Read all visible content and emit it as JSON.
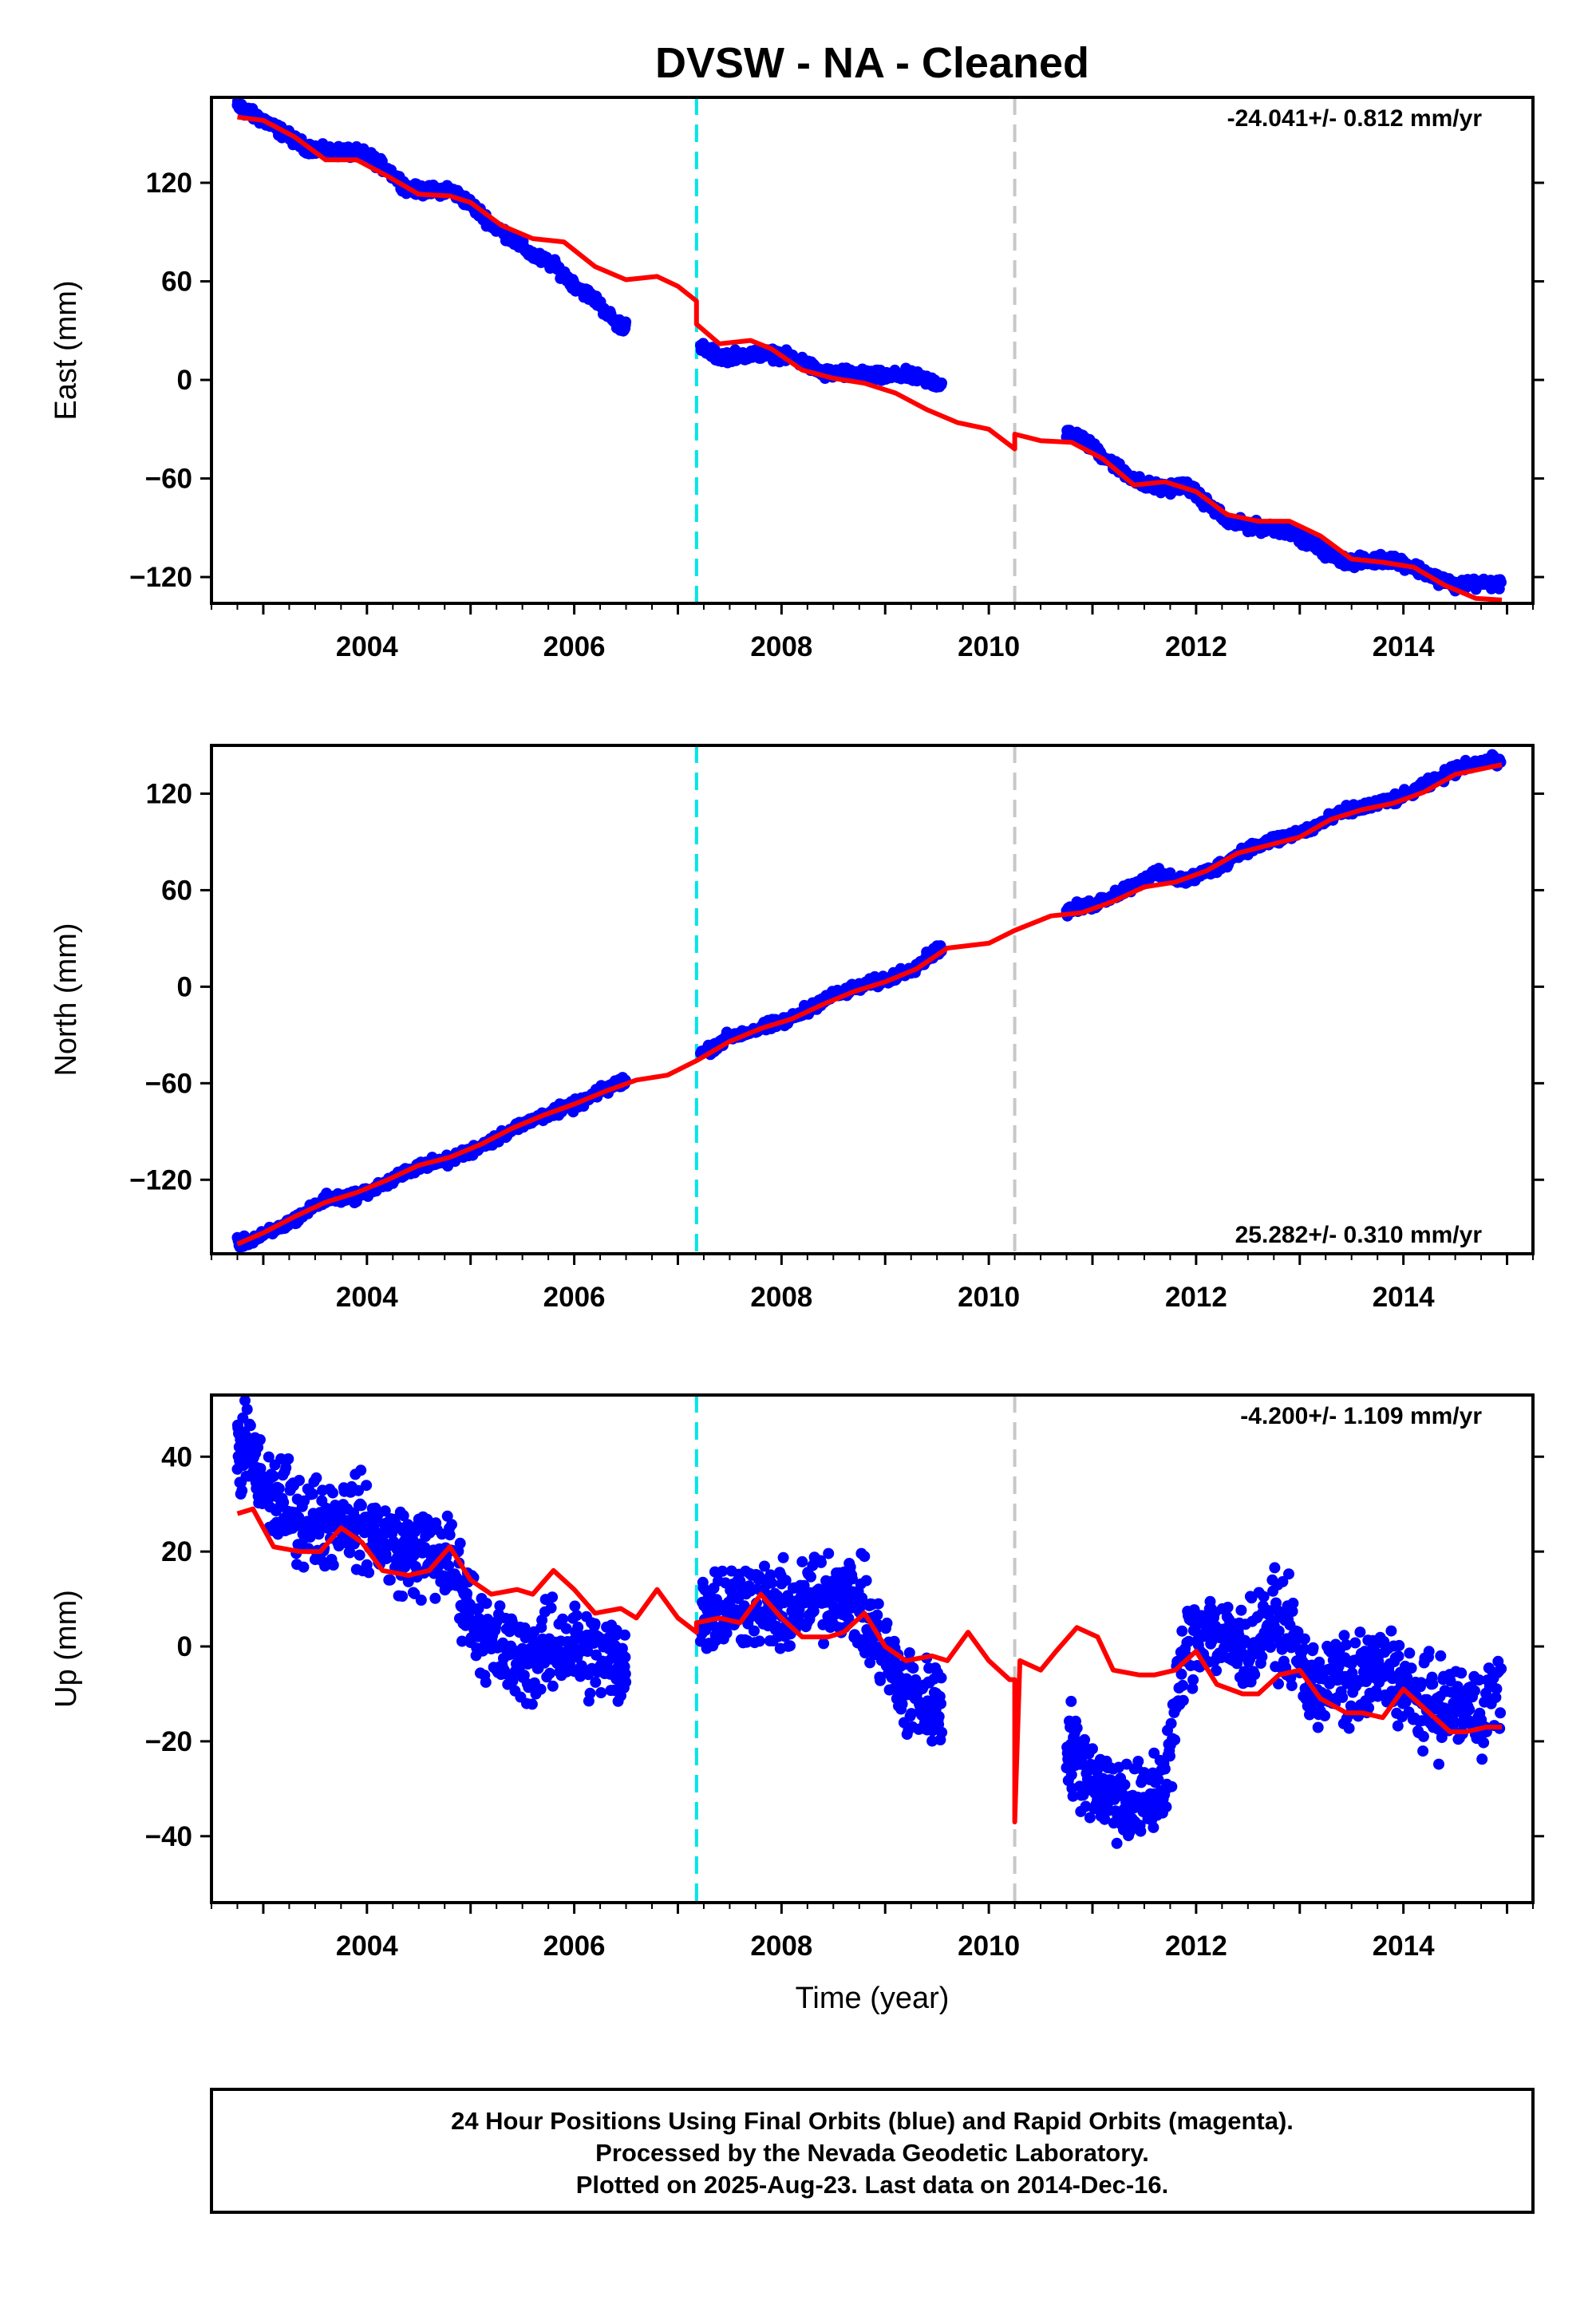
{
  "title": "DVSW  - NA - Cleaned",
  "xlabel": "Time (year)",
  "footer": {
    "line1": "24 Hour Positions Using Final Orbits (blue) and Rapid Orbits (magenta).",
    "line2": "Processed by the Nevada Geodetic Laboratory.",
    "line3": "Plotted on 2025-Aug-23. Last data on 2014-Dec-16."
  },
  "colors": {
    "data": "#0000ff",
    "model": "#ff0000",
    "offset_1": "#00e5e5",
    "offset_2": "#c8c8c8"
  },
  "chart_data": [
    {
      "type": "scatter",
      "ylabel": "East (mm)",
      "rate_label": "-24.041+/- 0.812 mm/yr",
      "rate_position": "top-right",
      "xlim": [
        2002.5,
        2015.25
      ],
      "ylim": [
        -136,
        172
      ],
      "yticks": [
        -120,
        -60,
        0,
        60,
        120
      ],
      "xticks": [
        2004,
        2006,
        2008,
        2010,
        2012,
        2014
      ],
      "offsets": [
        2007.18,
        2010.25
      ],
      "series": [
        {
          "kind": "points",
          "segments": [
            {
              "x": [
                2002.75,
                2002.85,
                2003.0,
                2003.2,
                2003.4,
                2003.6,
                2003.8,
                2004.0,
                2004.2,
                2004.4,
                2004.6,
                2004.8,
                2005.0,
                2005.2,
                2005.4,
                2005.6,
                2005.8,
                2006.0,
                2006.2,
                2006.4,
                2006.5
              ],
              "y": [
                167,
                163,
                158,
                150,
                142,
                139,
                139,
                137,
                128,
                116,
                115,
                116,
                107,
                95,
                86,
                76,
                70,
                58,
                49,
                35,
                32
              ]
            },
            {
              "x": [
                2007.22,
                2007.4,
                2007.6,
                2007.8,
                2008.0,
                2008.2,
                2008.4,
                2008.6,
                2008.8,
                2009.0,
                2009.2,
                2009.4,
                2009.55
              ],
              "y": [
                20,
                14,
                15,
                16,
                15,
                11,
                4,
                4,
                3,
                2,
                3,
                0,
                -3
              ]
            },
            {
              "x": [
                2010.75,
                2010.9,
                2011.1,
                2011.3,
                2011.5,
                2011.7,
                2011.9,
                2012.1,
                2012.3,
                2012.5,
                2012.7,
                2012.9,
                2013.1,
                2013.3,
                2013.5,
                2013.7,
                2013.9,
                2014.1,
                2014.3,
                2014.5,
                2014.7,
                2014.95
              ],
              "y": [
                -32,
                -36,
                -46,
                -56,
                -64,
                -66,
                -64,
                -75,
                -86,
                -89,
                -90,
                -92,
                -99,
                -107,
                -111,
                -110,
                -109,
                -114,
                -120,
                -125,
                -124,
                -124
              ]
            }
          ]
        },
        {
          "kind": "model",
          "x": [
            2002.75,
            2003.0,
            2003.3,
            2003.6,
            2003.9,
            2004.2,
            2004.5,
            2004.8,
            2005.0,
            2005.3,
            2005.6,
            2005.9,
            2006.2,
            2006.5,
            2006.8,
            2007.0,
            2007.18,
            2007.18,
            2007.4,
            2007.7,
            2007.9,
            2008.2,
            2008.5,
            2008.8,
            2009.1,
            2009.4,
            2009.7,
            2010.0,
            2010.25,
            2010.25,
            2010.5,
            2010.8,
            2011.1,
            2011.4,
            2011.7,
            2012.0,
            2012.3,
            2012.6,
            2012.9,
            2013.2,
            2013.5,
            2013.8,
            2014.1,
            2014.4,
            2014.7,
            2014.95
          ],
          "y": [
            160,
            158,
            148,
            134,
            134,
            124,
            113,
            112,
            108,
            94,
            86,
            84,
            69,
            61,
            63,
            57,
            48,
            34,
            22,
            24,
            19,
            6,
            1,
            -2,
            -8,
            -18,
            -26,
            -30,
            -42,
            -33,
            -37,
            -38,
            -48,
            -64,
            -62,
            -68,
            -82,
            -86,
            -86,
            -95,
            -109,
            -111,
            -114,
            -125,
            -133,
            -134
          ]
        }
      ]
    },
    {
      "type": "scatter",
      "ylabel": "North (mm)",
      "rate_label": "25.282+/- 0.310 mm/yr",
      "rate_position": "bottom-right",
      "xlim": [
        2002.5,
        2015.25
      ],
      "ylim": [
        -166,
        150
      ],
      "yticks": [
        -120,
        -60,
        0,
        60,
        120
      ],
      "xticks": [
        2004,
        2006,
        2008,
        2010,
        2012,
        2014
      ],
      "offsets": [
        2007.18,
        2010.25
      ],
      "series": [
        {
          "kind": "points",
          "segments": [
            {
              "x": [
                2002.75,
                2003.0,
                2003.3,
                2003.6,
                2003.9,
                2004.2,
                2004.5,
                2004.8,
                2005.1,
                2005.4,
                2005.7,
                2006.0,
                2006.3,
                2006.5
              ],
              "y": [
                -160,
                -155,
                -145,
                -132,
                -130,
                -122,
                -111,
                -108,
                -99,
                -89,
                -80,
                -74,
                -64,
                -58
              ]
            },
            {
              "x": [
                2007.22,
                2007.5,
                2007.8,
                2008.1,
                2008.4,
                2008.7,
                2009.0,
                2009.3,
                2009.55
              ],
              "y": [
                -42,
                -31,
                -26,
                -20,
                -8,
                -1,
                4,
                13,
                25
              ]
            },
            {
              "x": [
                2010.75,
                2011.0,
                2011.3,
                2011.6,
                2011.9,
                2012.2,
                2012.5,
                2012.8,
                2013.1,
                2013.4,
                2013.7,
                2014.0,
                2014.3,
                2014.6,
                2014.95
              ],
              "y": [
                47,
                51,
                60,
                70,
                66,
                74,
                86,
                92,
                98,
                108,
                113,
                118,
                128,
                138,
                141
              ]
            }
          ]
        },
        {
          "kind": "model",
          "x": [
            2002.75,
            2003.0,
            2003.3,
            2003.6,
            2003.9,
            2004.2,
            2004.5,
            2004.8,
            2005.1,
            2005.4,
            2005.7,
            2006.0,
            2006.3,
            2006.6,
            2006.9,
            2007.18,
            2007.5,
            2007.8,
            2008.1,
            2008.4,
            2008.7,
            2009.0,
            2009.3,
            2009.6,
            2010.0,
            2010.25,
            2010.6,
            2010.9,
            2011.2,
            2011.5,
            2011.8,
            2012.1,
            2012.4,
            2012.7,
            2013.0,
            2013.3,
            2013.6,
            2013.9,
            2014.2,
            2014.5,
            2014.95
          ],
          "y": [
            -160,
            -153,
            -143,
            -134,
            -128,
            -120,
            -111,
            -106,
            -98,
            -88,
            -80,
            -73,
            -65,
            -58,
            -55,
            -46,
            -34,
            -26,
            -20,
            -11,
            -3,
            3,
            11,
            24,
            27,
            35,
            44,
            46,
            53,
            62,
            65,
            72,
            83,
            88,
            93,
            104,
            110,
            114,
            121,
            132,
            138
          ]
        }
      ]
    },
    {
      "type": "scatter",
      "ylabel": "Up (mm)",
      "rate_label": "-4.200+/- 1.109 mm/yr",
      "rate_position": "top-right",
      "xlim": [
        2002.5,
        2015.25
      ],
      "ylim": [
        -54,
        53
      ],
      "yticks": [
        -40,
        -20,
        0,
        20,
        40
      ],
      "xticks": [
        2004,
        2006,
        2008,
        2010,
        2012,
        2014
      ],
      "offsets": [
        2007.18,
        2010.25
      ],
      "series": [
        {
          "kind": "points",
          "segments": [
            {
              "x": [
                2002.75,
                2002.85,
                2003.0,
                2003.2,
                2003.4,
                2003.6,
                2003.8,
                2004.0,
                2004.2,
                2004.4,
                2004.6,
                2004.8,
                2005.0,
                2005.2,
                2005.4,
                2005.6,
                2005.8,
                2006.0,
                2006.2,
                2006.4,
                2006.5
              ],
              "y": [
                40,
                42,
                33,
                30,
                27,
                26,
                28,
                25,
                22,
                20,
                19,
                18,
                8,
                0,
                -2,
                -3,
                0,
                0,
                -2,
                -3,
                -5
              ],
              "spread": 7
            },
            {
              "x": [
                2007.22,
                2007.4,
                2007.6,
                2007.8,
                2008.0,
                2008.2,
                2008.4,
                2008.6,
                2008.8,
                2009.0,
                2009.2,
                2009.4,
                2009.55
              ],
              "y": [
                9,
                8,
                10,
                9,
                7,
                9,
                11,
                12,
                7,
                -2,
                -10,
                -12,
                -12
              ],
              "spread": 7
            },
            {
              "x": [
                2010.75,
                2010.9,
                2011.1,
                2011.3,
                2011.5,
                2011.7,
                2011.9,
                2012.1,
                2012.3,
                2012.5,
                2012.7,
                2012.9,
                2013.1,
                2013.3,
                2013.5,
                2013.7,
                2013.9,
                2014.1,
                2014.3,
                2014.5,
                2014.7,
                2014.95
              ],
              "y": [
                -20,
                -25,
                -30,
                -32,
                -34,
                -28,
                0,
                5,
                0,
                0,
                5,
                3,
                -8,
                -8,
                -8,
                -6,
                -5,
                -12,
                -12,
                -13,
                -14,
                -8
              ],
              "spread": 7
            }
          ]
        },
        {
          "kind": "model",
          "x": [
            2002.75,
            2002.9,
            2003.1,
            2003.35,
            2003.55,
            2003.75,
            2003.95,
            2004.15,
            2004.4,
            2004.6,
            2004.8,
            2005.0,
            2005.2,
            2005.45,
            2005.6,
            2005.8,
            2006.0,
            2006.2,
            2006.45,
            2006.6,
            2006.8,
            2007.0,
            2007.18,
            2007.18,
            2007.4,
            2007.6,
            2007.8,
            2008.0,
            2008.2,
            2008.45,
            2008.6,
            2008.8,
            2009.0,
            2009.2,
            2009.45,
            2009.6,
            2009.8,
            2010.0,
            2010.2,
            2010.25,
            2010.25,
            2010.3,
            2010.5,
            2010.65,
            2010.85,
            2011.05,
            2011.2,
            2011.45,
            2011.6,
            2011.8,
            2012.0,
            2012.2,
            2012.45,
            2012.6,
            2012.8,
            2013.0,
            2013.2,
            2013.45,
            2013.6,
            2013.8,
            2014.0,
            2014.2,
            2014.45,
            2014.6,
            2014.8,
            2014.95
          ],
          "y": [
            28,
            29,
            21,
            20,
            20,
            25,
            22,
            16,
            15,
            16,
            21,
            14,
            11,
            12,
            11,
            16,
            12,
            7,
            8,
            6,
            12,
            6,
            3,
            5,
            6,
            5,
            11,
            6,
            2,
            2,
            3,
            7,
            0,
            -3,
            -2,
            -3,
            3,
            -3,
            -7,
            -7,
            -37,
            -3,
            -5,
            -1,
            4,
            2,
            -5,
            -6,
            -6,
            -5,
            -1,
            -8,
            -10,
            -10,
            -6,
            -5,
            -11,
            -14,
            -14,
            -15,
            -9,
            -13,
            -18,
            -18,
            -17,
            -17
          ]
        }
      ]
    }
  ]
}
